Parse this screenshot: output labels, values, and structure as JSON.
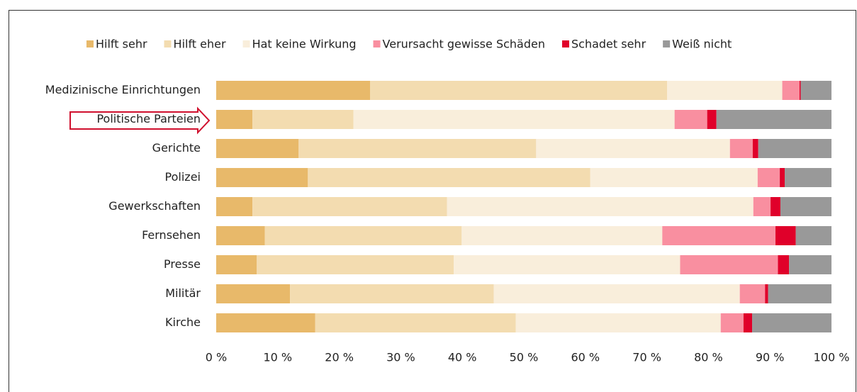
{
  "chart_data": {
    "type": "stacked_barh",
    "categories": [
      "Medizinische Einrichtungen",
      "Politische Parteien",
      "Gerichte",
      "Polizei",
      "Gewerkschaften",
      "Fernsehen",
      "Presse",
      "Militär",
      "Kirche"
    ],
    "series": [
      {
        "name": "Hilft sehr",
        "color": "#e8b96a",
        "values": [
          25.0,
          5.9,
          13.4,
          14.9,
          5.9,
          7.9,
          6.6,
          12.0,
          16.1
        ]
      },
      {
        "name": "Hilft eher",
        "color": "#f3dcb0",
        "values": [
          48.3,
          16.4,
          38.6,
          45.9,
          31.6,
          32.0,
          32.0,
          33.1,
          32.6
        ]
      },
      {
        "name": "Hat keine Wirkung",
        "color": "#f9eedb",
        "values": [
          18.7,
          52.2,
          31.5,
          27.2,
          49.8,
          32.6,
          36.8,
          40.0,
          33.3
        ]
      },
      {
        "name": "Verursacht gewisse Schäden",
        "color": "#f98fa0",
        "values": [
          2.8,
          5.3,
          3.7,
          3.6,
          2.8,
          18.4,
          15.9,
          4.1,
          3.7
        ]
      },
      {
        "name": "Schadet sehr",
        "color": "#e0002a",
        "values": [
          0.2,
          1.5,
          0.9,
          0.8,
          1.6,
          3.3,
          1.8,
          0.5,
          1.4
        ]
      },
      {
        "name": "Weiß nicht",
        "color": "#999999",
        "values": [
          5.0,
          18.7,
          11.9,
          7.6,
          8.3,
          5.8,
          6.9,
          10.3,
          12.9
        ]
      }
    ],
    "xlim": [
      0,
      100
    ],
    "xticks": [
      {
        "value": 0,
        "label": "0 %"
      },
      {
        "value": 10,
        "label": "10 %"
      },
      {
        "value": 20,
        "label": "20 %"
      },
      {
        "value": 30,
        "label": "30 %"
      },
      {
        "value": 40,
        "label": "40 %"
      },
      {
        "value": 50,
        "label": "50 %"
      },
      {
        "value": 60,
        "label": "60 %"
      },
      {
        "value": 70,
        "label": "70 %"
      },
      {
        "value": 80,
        "label": "80 %"
      },
      {
        "value": 90,
        "label": "90 %"
      },
      {
        "value": 100,
        "label": "100 %"
      }
    ],
    "grid": false,
    "legend": "top"
  }
}
